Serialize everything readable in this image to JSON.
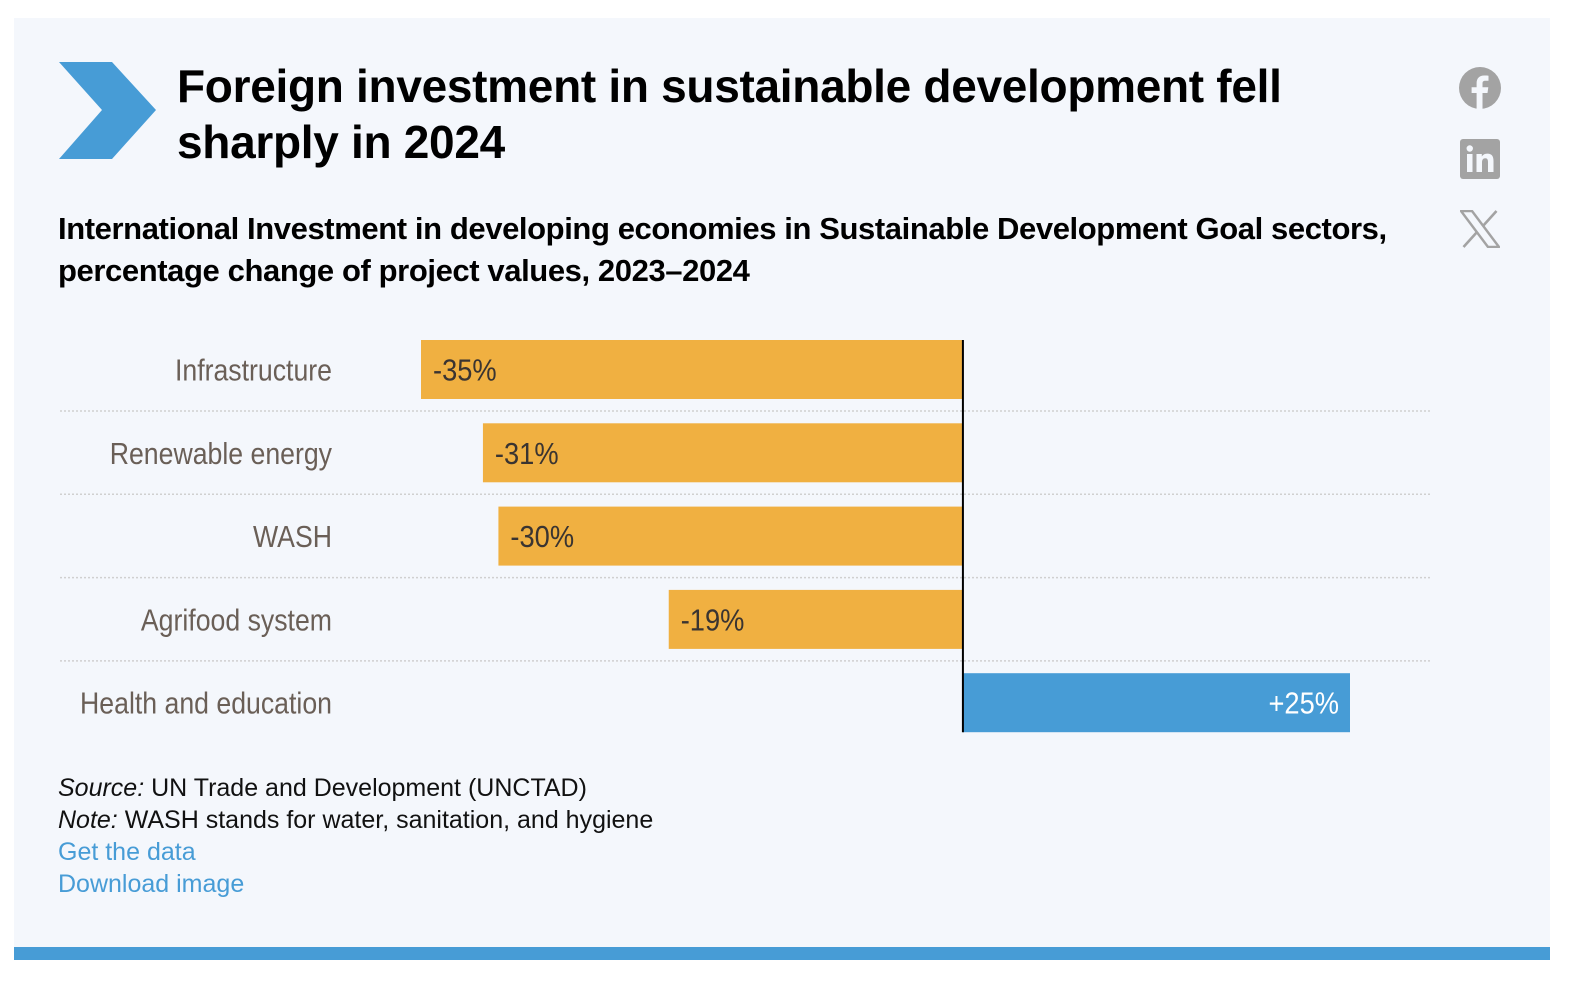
{
  "header": {
    "title": "Foreign investment in sustainable development fell sharply in 2024",
    "subtitle": "International Investment in developing economies in Sustainable Development Goal sectors, percentage change of project values, 2023–2024",
    "brand_icon": "chevron-right-icon"
  },
  "share": {
    "items": [
      {
        "name": "facebook",
        "icon": "facebook-icon"
      },
      {
        "name": "linkedin",
        "icon": "linkedin-icon"
      },
      {
        "name": "x",
        "icon": "x-twitter-icon"
      }
    ],
    "icon_color": "#a3a3a3"
  },
  "colors": {
    "negative": "#f0b041",
    "positive": "#479cd6",
    "accent": "#479cd6",
    "background": "#f4f7fc",
    "category_text": "#6a5f57",
    "negative_value_text": "#3a3431",
    "positive_value_text": "#ffffff",
    "zero_line": "#000000",
    "gridline": "#d0d0d0"
  },
  "chart_data": {
    "type": "bar",
    "orientation": "horizontal",
    "title": "Foreign investment in sustainable development fell sharply in 2024",
    "subtitle": "International Investment in developing economies in Sustainable Development Goal sectors, percentage change of project values, 2023–2024",
    "categories": [
      "Infrastructure",
      "Renewable energy",
      "WASH",
      "Agrifood system",
      "Health and education"
    ],
    "values": [
      -35,
      -31,
      -30,
      -19,
      25
    ],
    "value_labels": [
      "-35%",
      "-31%",
      "-30%",
      "-19%",
      "+25%"
    ],
    "unit": "%",
    "xlabel": "",
    "ylabel": "",
    "xlim": [
      -35,
      25
    ],
    "zero_line": true,
    "grid": "dotted row separators",
    "legend": "none"
  },
  "footer": {
    "source_label": "Source:",
    "source_text": " UN Trade and Development (UNCTAD)",
    "note_label": "Note:",
    "note_text": " WASH stands for water, sanitation, and hygiene",
    "links": {
      "get_data": "Get the data",
      "download_image": "Download image"
    }
  }
}
